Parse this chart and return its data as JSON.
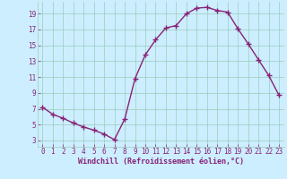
{
  "x": [
    0,
    1,
    2,
    3,
    4,
    5,
    6,
    7,
    8,
    9,
    10,
    11,
    12,
    13,
    14,
    15,
    16,
    17,
    18,
    19,
    20,
    21,
    22,
    23
  ],
  "y": [
    7.2,
    6.3,
    5.8,
    5.2,
    4.7,
    4.3,
    3.8,
    3.1,
    5.7,
    10.8,
    13.8,
    15.7,
    17.2,
    17.5,
    19.0,
    19.7,
    19.8,
    19.4,
    19.2,
    17.1,
    15.2,
    13.2,
    11.2,
    8.7
  ],
  "line_color": "#882277",
  "marker": "+",
  "marker_size": 4,
  "marker_linewidth": 1.0,
  "background_color": "#cceeff",
  "grid_color": "#99ccbb",
  "xlabel": "Windchill (Refroidissement éolien,°C)",
  "xlabel_color": "#882277",
  "tick_color": "#882277",
  "xlim": [
    -0.5,
    23.5
  ],
  "ylim": [
    2.2,
    20.5
  ],
  "yticks": [
    3,
    5,
    7,
    9,
    11,
    13,
    15,
    17,
    19
  ],
  "xticks": [
    0,
    1,
    2,
    3,
    4,
    5,
    6,
    7,
    8,
    9,
    10,
    11,
    12,
    13,
    14,
    15,
    16,
    17,
    18,
    19,
    20,
    21,
    22,
    23
  ],
  "linewidth": 1.0,
  "tick_fontsize": 5.5,
  "xlabel_fontsize": 6.0
}
